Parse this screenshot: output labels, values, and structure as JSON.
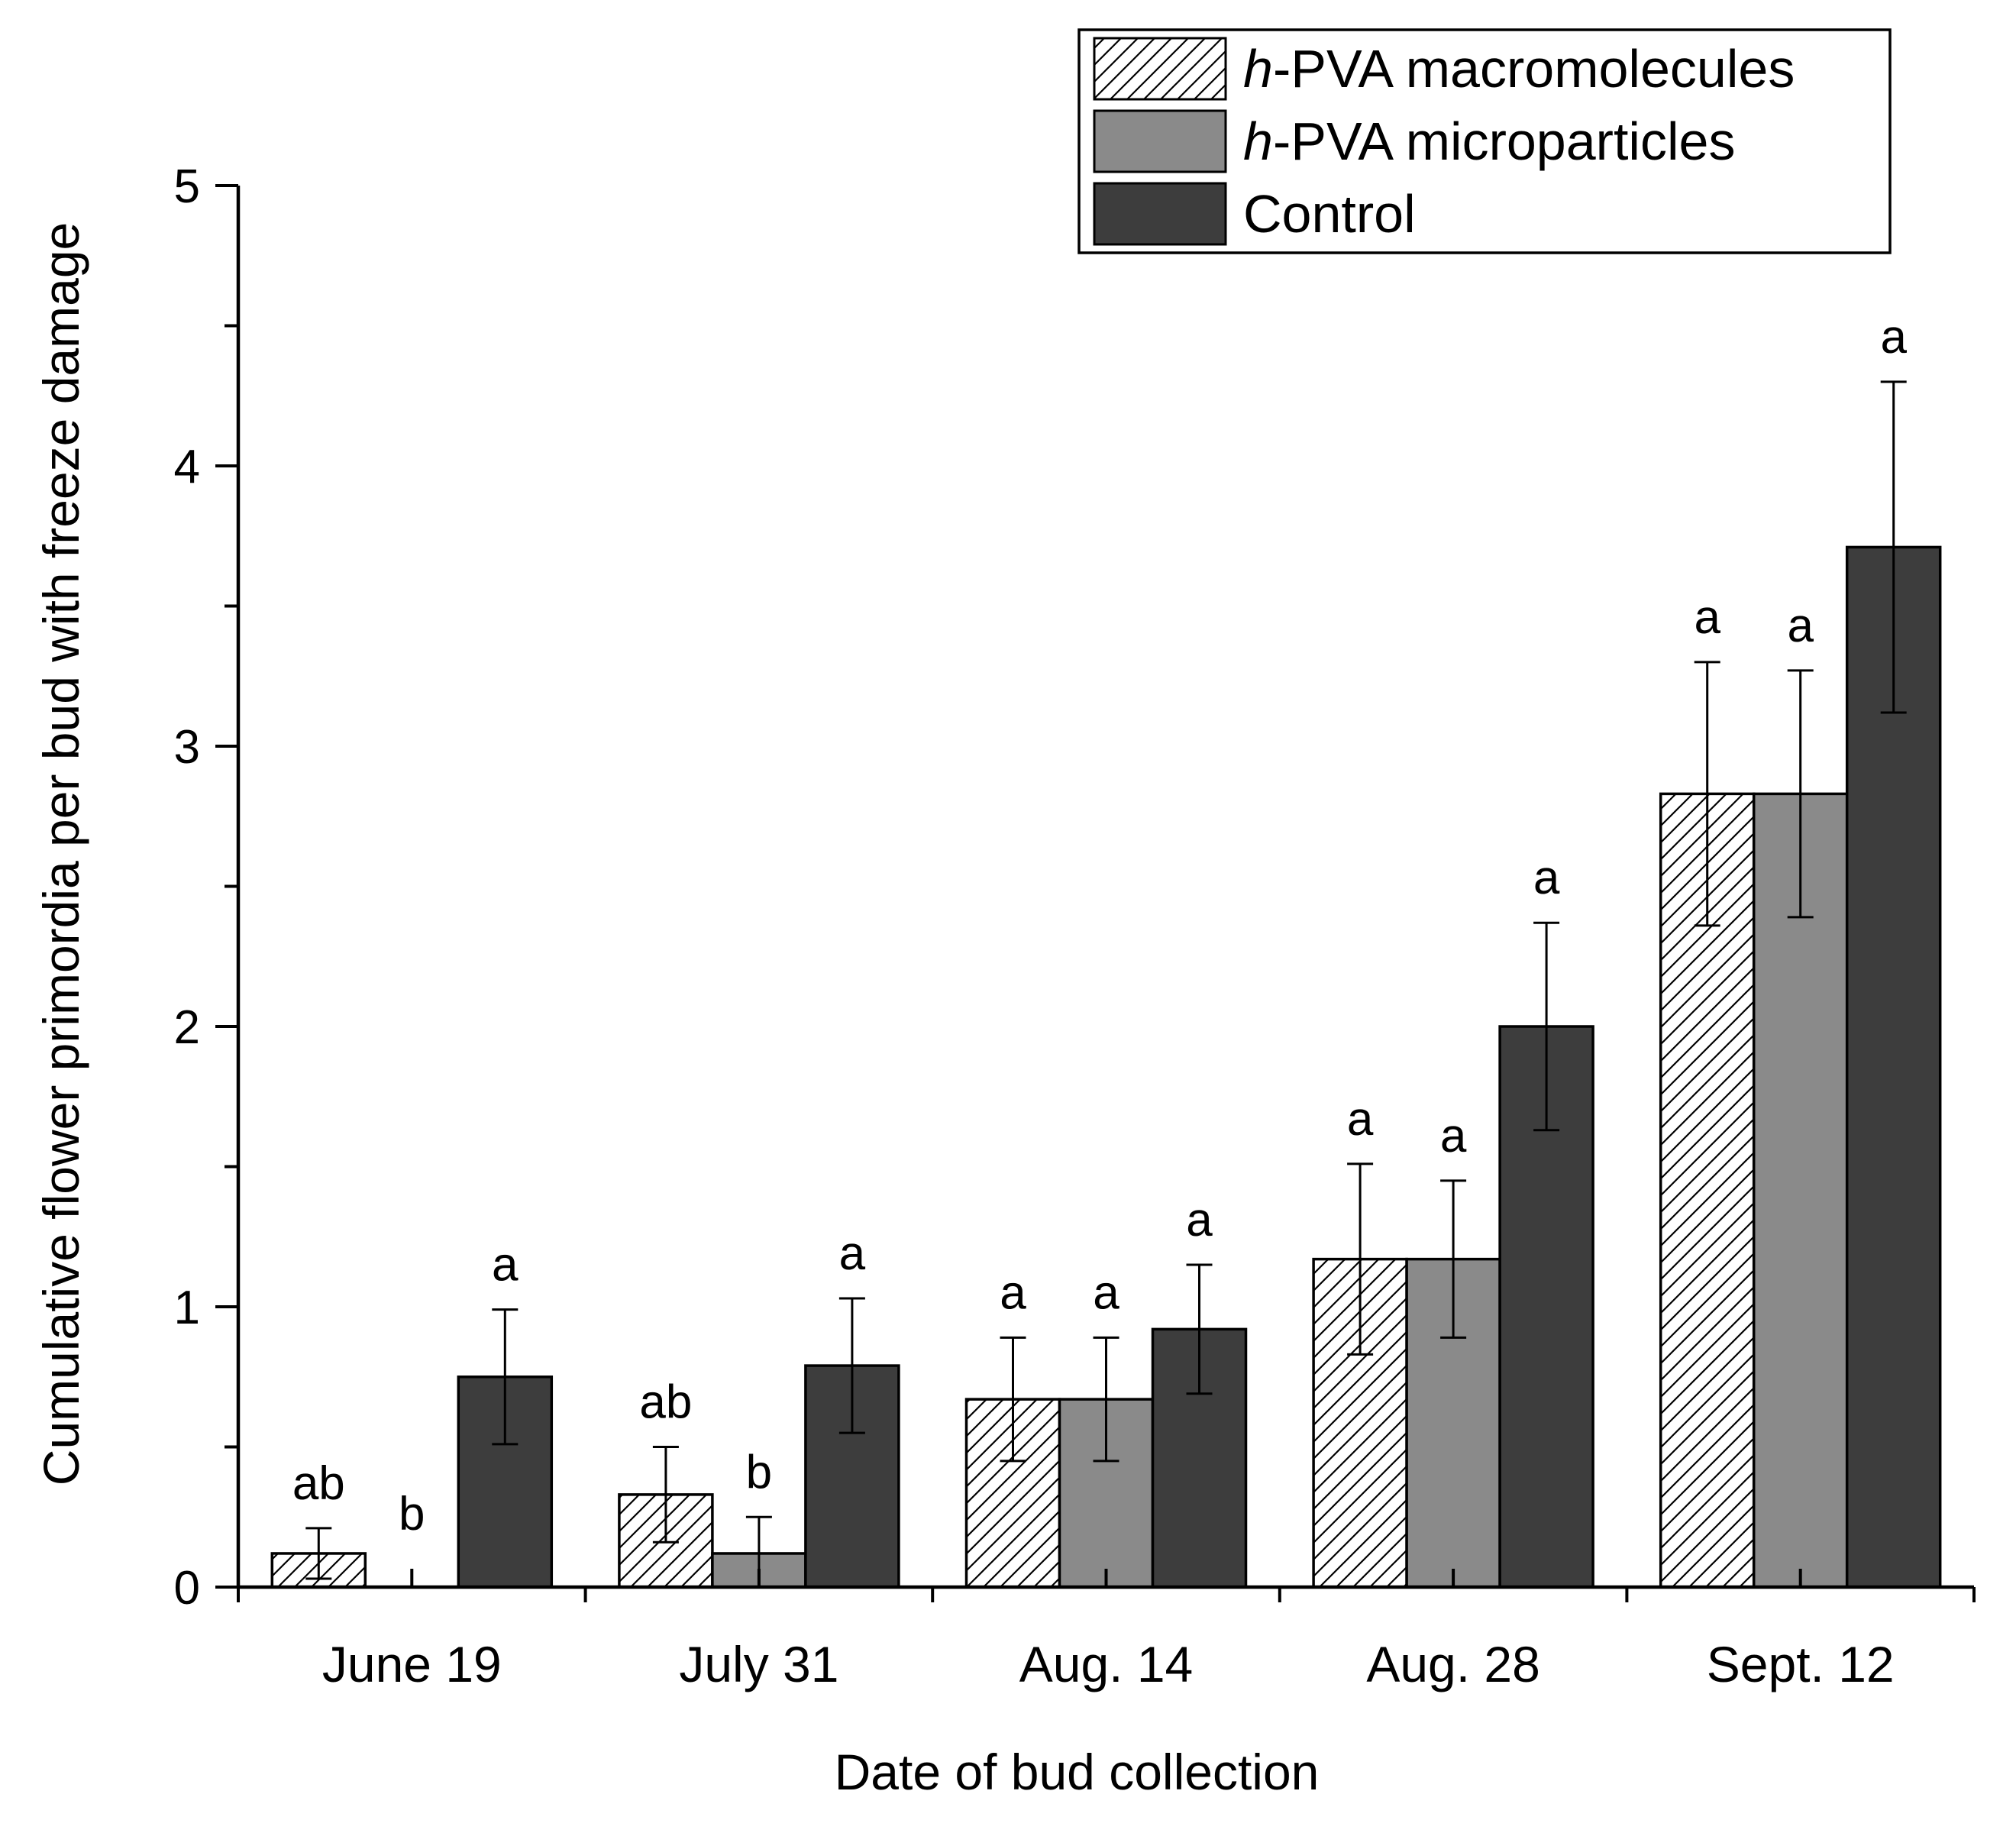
{
  "chart_data": {
    "type": "bar",
    "title": "",
    "xlabel": "Date of bud collection",
    "ylabel": "Cumulative flower primordia per bud with freeze damage",
    "ylim": [
      0,
      5
    ],
    "y_ticks": [
      0,
      1,
      2,
      3,
      4,
      5
    ],
    "categories": [
      "June 19",
      "July 31",
      "Aug. 14",
      "Aug. 28",
      "Sept. 12"
    ],
    "legend_position": "top-right",
    "series": [
      {
        "name_prefix": "h",
        "name_suffix": "-PVA macromolecules",
        "fill": "hatch",
        "values": [
          0.12,
          0.33,
          0.67,
          1.17,
          2.83
        ],
        "errors": [
          0.09,
          0.17,
          0.22,
          0.34,
          0.47
        ],
        "sig_letters": [
          "ab",
          "ab",
          "a",
          "a",
          "a"
        ]
      },
      {
        "name_prefix": "h",
        "name_suffix": "-PVA microparticles",
        "fill": "#8a8a8a",
        "values": [
          0.0,
          0.12,
          0.67,
          1.17,
          2.83
        ],
        "errors": [
          0.0,
          0.13,
          0.22,
          0.28,
          0.44
        ],
        "sig_letters": [
          "b",
          "b",
          "a",
          "a",
          "a"
        ]
      },
      {
        "name_prefix": "",
        "name_suffix": "Control",
        "fill": "#3d3d3d",
        "values": [
          0.75,
          0.79,
          0.92,
          2.0,
          3.71
        ],
        "errors": [
          0.24,
          0.24,
          0.23,
          0.37,
          0.59
        ],
        "sig_letters": [
          "a",
          "a",
          "a",
          "a",
          "a"
        ]
      }
    ]
  }
}
